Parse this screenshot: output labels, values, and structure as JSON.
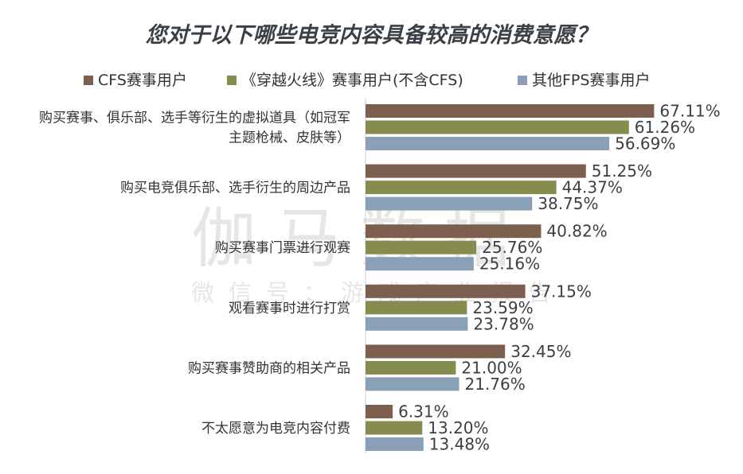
{
  "chart_data": {
    "type": "bar",
    "orientation": "horizontal",
    "title": "您对于以下哪些电竞内容具备较高的消费意愿？",
    "categories": [
      "购买赛事、俱乐部、选手等衍生的虚拟道具（如冠军主题枪械、皮肤等）",
      "购买电竞俱乐部、选手衍生的周边产品",
      "购买赛事门票进行观赛",
      "观看赛事时进行打赏",
      "购买赛事赞助商的相关产品",
      "不太愿意为电竞内容付费"
    ],
    "category_lines": [
      [
        "购买赛事、俱乐部、选手等衍生的虚拟道具（如冠军",
        "主题枪械、皮肤等）"
      ],
      [
        "购买电竞俱乐部、选手衍生的周边产品"
      ],
      [
        "购买赛事门票进行观赛"
      ],
      [
        "观看赛事时进行打赏"
      ],
      [
        "购买赛事赞助商的相关产品"
      ],
      [
        "不太愿意为电竞内容付费"
      ]
    ],
    "series": [
      {
        "name": "CFS赛事用户",
        "color": "#7d5f4f",
        "values": [
          67.11,
          51.25,
          40.82,
          37.15,
          32.45,
          6.31
        ],
        "labels": [
          "67.11%",
          "51.25%",
          "40.82%",
          "37.15%",
          "32.45%",
          "6.31%"
        ]
      },
      {
        "name": "《穿越火线》赛事用户(不含CFS)",
        "color": "#868b4e",
        "values": [
          61.26,
          44.37,
          25.76,
          23.59,
          21.0,
          13.2
        ],
        "labels": [
          "61.26%",
          "44.37%",
          "25.76%",
          "23.59%",
          "21.00%",
          "13.20%"
        ]
      },
      {
        "name": "其他FPS赛事用户",
        "color": "#8aa0b7",
        "values": [
          56.69,
          38.75,
          25.16,
          23.78,
          21.76,
          13.48
        ],
        "labels": [
          "56.69%",
          "38.75%",
          "25.16%",
          "23.78%",
          "21.76%",
          "13.48%"
        ]
      }
    ],
    "xlim": [
      0,
      100
    ],
    "grid": false,
    "legend_position": "top"
  },
  "watermark": {
    "main": "伽马数据",
    "sub": "微信号：游戏产业报告"
  }
}
